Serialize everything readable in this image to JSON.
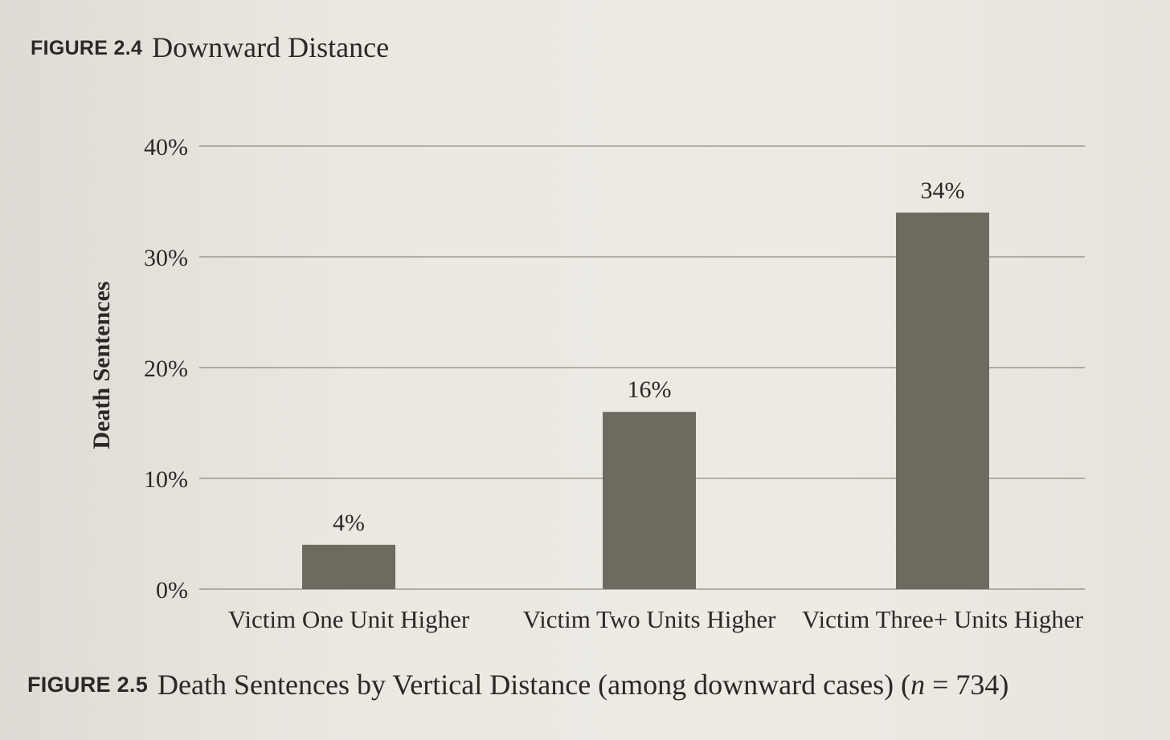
{
  "previous_figure": {
    "label": "FIGURE 2.4",
    "title": "Downward Distance"
  },
  "figure": {
    "label": "FIGURE 2.5",
    "title_main": "Death Sentences by Vertical Distance (among downward cases) (",
    "n_symbol": "n",
    "title_end": " = 734)"
  },
  "chart_data": {
    "type": "bar",
    "ylabel": "Death Sentences",
    "xlabel": "",
    "ylim": [
      0,
      40
    ],
    "yticks": [
      0,
      10,
      20,
      30,
      40
    ],
    "ytick_labels": [
      "0%",
      "10%",
      "20%",
      "30%",
      "40%"
    ],
    "categories": [
      "Victim One Unit Higher",
      "Victim Two Units Higher",
      "Victim Three+ Units Higher"
    ],
    "values": [
      4,
      16,
      34
    ],
    "data_labels": [
      "4%",
      "16%",
      "34%"
    ],
    "grid": true,
    "bar_color": "#6f6a60"
  }
}
